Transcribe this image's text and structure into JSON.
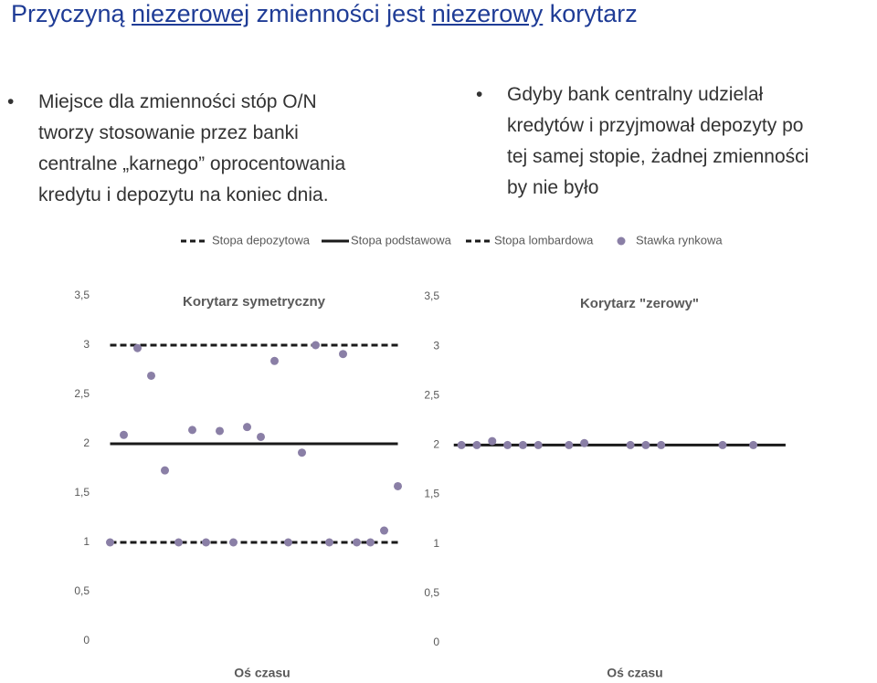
{
  "title": [
    {
      "text": "Przyczyną "
    },
    {
      "text": "niezerowej",
      "underline": true
    },
    {
      "text": " zmienności jest "
    },
    {
      "text": "niezerowy",
      "underline": true
    },
    {
      "text": " korytarz"
    }
  ],
  "bullets": [
    {
      "lines": [
        "Miejsce dla zmienności stóp O/N",
        "tworzy stosowanie przez banki",
        "centralne „karnego” oprocentowania",
        "kredytu i depozytu na koniec dnia."
      ]
    },
    {
      "lines": [
        "Gdyby bank centralny udzielał",
        "kredytów i przyjmował depozyty po",
        "tej samej stopie, żadnej zmienności",
        "by nie było"
      ]
    }
  ],
  "chart_data": [
    {
      "type": "line",
      "title": "Korytarz symetryczny",
      "x_label": "Oś czasu",
      "xlim": [
        0.3,
        22.3
      ],
      "ylim": [
        0,
        3.5
      ],
      "yticks": [
        0,
        {
          "value": 0.5,
          "label": "0,5"
        },
        1,
        {
          "value": 1.5,
          "label": "1,5"
        },
        2,
        {
          "value": 2.5,
          "label": "2,5"
        },
        3,
        {
          "value": 3.5,
          "label": "3,5"
        }
      ],
      "series": [
        {
          "name": "Stopa depozytowa",
          "color": "#1a1a1a",
          "style": "dashed",
          "x": [
            1,
            22
          ],
          "values": [
            1,
            1
          ]
        },
        {
          "name": "Stopa podstawowa",
          "color": "#1a1a1a",
          "style": "solid",
          "x": [
            1,
            22
          ],
          "values": [
            2,
            2
          ]
        },
        {
          "name": "Stopa lombardowa",
          "color": "#1a1a1a",
          "style": "dashed",
          "x": [
            1,
            22
          ],
          "values": [
            3,
            3
          ]
        },
        {
          "name": "Stawka rynkowa",
          "color": "#8a7fa6",
          "style": "markers",
          "x": [
            1,
            2,
            3,
            4,
            5,
            6,
            7,
            8,
            9,
            10,
            11,
            12,
            13,
            14,
            15,
            16,
            17,
            18,
            19,
            20,
            21,
            22
          ],
          "values": [
            1,
            2.09,
            2.97,
            2.69,
            1.73,
            1,
            2.14,
            1,
            2.13,
            1,
            2.17,
            2.07,
            2.84,
            1,
            1.91,
            3,
            1,
            2.91,
            1,
            1,
            1.12,
            1.57
          ]
        }
      ]
    },
    {
      "type": "line",
      "title": "Korytarz \"zerowy\"",
      "x_label": "Oś czasu",
      "xlim": [
        0.1,
        22.7
      ],
      "ylim": [
        0,
        3.5
      ],
      "yticks": [
        0,
        {
          "value": 0.5,
          "label": "0,5"
        },
        1,
        {
          "value": 1.5,
          "label": "1,5"
        },
        2,
        {
          "value": 2.5,
          "label": "2,5"
        },
        3,
        {
          "value": 3.5,
          "label": "3,5"
        }
      ],
      "series": [
        {
          "color": "#1a1a1a",
          "style": "solid",
          "x": [
            0.5,
            22.1
          ],
          "values": [
            2,
            2
          ]
        },
        {
          "color": "#8a7fa6",
          "style": "markers",
          "x": [
            1,
            2,
            3,
            4,
            5,
            6,
            8,
            9,
            12,
            13,
            14,
            18,
            20
          ],
          "values": [
            2,
            2,
            2.04,
            2,
            2,
            2,
            2,
            2.02,
            2,
            2,
            2,
            2,
            2
          ]
        }
      ]
    }
  ]
}
